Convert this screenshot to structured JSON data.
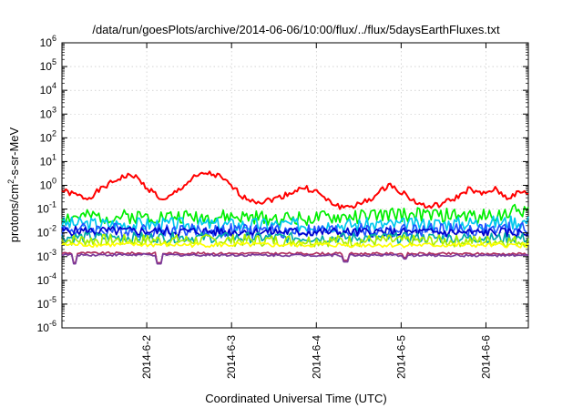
{
  "chart_data": {
    "type": "line",
    "title": "/data/run/goesPlots/archive/2014-06-06/10:00/flux/../flux/5daysEarthFluxes.txt",
    "xlabel": "Coordinated Universal Time (UTC)",
    "ylabel": {
      "prefix": "protons/cm",
      "sup": "2",
      "suffix": "-s-sr-MeV"
    },
    "yscale": "log",
    "ylim_exp": [
      -6,
      6
    ],
    "ytick_base": "10",
    "ytick_exps": [
      "-6",
      "-5",
      "-4",
      "-3",
      "-2",
      "-1",
      "0",
      "1",
      "2",
      "3",
      "4",
      "5",
      "6"
    ],
    "xlim": [
      0,
      5.5
    ],
    "xtick_values": [
      1,
      2,
      3,
      4,
      5
    ],
    "xtick_labels": [
      "2014-6-2",
      "2014-6-3",
      "2014-6-4",
      "2014-6-5",
      "2014-6-6"
    ],
    "grid": true,
    "legend": "none",
    "series": [
      {
        "color": "#ff0000",
        "profile": [
          [
            0,
            0.6
          ],
          [
            0.3,
            0.28
          ],
          [
            0.5,
            0.85
          ],
          [
            0.7,
            2.2
          ],
          [
            0.85,
            2.6
          ],
          [
            1.0,
            0.8
          ],
          [
            1.1,
            0.45
          ],
          [
            1.2,
            0.2
          ],
          [
            1.35,
            0.55
          ],
          [
            1.55,
            2.0
          ],
          [
            1.7,
            3.3
          ],
          [
            1.85,
            2.4
          ],
          [
            2.0,
            0.9
          ],
          [
            2.15,
            0.3
          ],
          [
            2.35,
            0.2
          ],
          [
            2.55,
            0.3
          ],
          [
            2.7,
            0.5
          ],
          [
            2.85,
            0.8
          ],
          [
            3.0,
            0.55
          ],
          [
            3.15,
            0.2
          ],
          [
            3.3,
            0.12
          ],
          [
            3.5,
            0.15
          ],
          [
            3.7,
            0.35
          ],
          [
            3.85,
            1.1
          ],
          [
            4.0,
            0.55
          ],
          [
            4.15,
            0.22
          ],
          [
            4.3,
            0.12
          ],
          [
            4.45,
            0.15
          ],
          [
            4.65,
            0.3
          ],
          [
            4.8,
            0.7
          ],
          [
            4.95,
            0.4
          ],
          [
            5.1,
            0.7
          ],
          [
            5.25,
            0.3
          ],
          [
            5.4,
            0.5
          ],
          [
            5.5,
            0.45
          ]
        ],
        "noise": 0.12,
        "noise_seed": 1,
        "dips": []
      },
      {
        "color": "#00ee00",
        "profile": [
          [
            0,
            0.045
          ],
          [
            1.0,
            0.05
          ],
          [
            2.0,
            0.045
          ],
          [
            3.0,
            0.04
          ],
          [
            4.0,
            0.06
          ],
          [
            5.0,
            0.05
          ],
          [
            5.5,
            0.1
          ]
        ],
        "noise": 0.3,
        "noise_seed": 2,
        "dips": []
      },
      {
        "color": "#00c8ee",
        "profile": [
          [
            0,
            0.024
          ],
          [
            2.0,
            0.022
          ],
          [
            4.0,
            0.022
          ],
          [
            5.5,
            0.03
          ]
        ],
        "noise": 0.3,
        "noise_seed": 3,
        "dips": []
      },
      {
        "color": "#2255ff",
        "profile": [
          [
            0,
            0.014
          ],
          [
            2.0,
            0.012
          ],
          [
            4.0,
            0.012
          ],
          [
            5.5,
            0.014
          ]
        ],
        "noise": 0.3,
        "noise_seed": 4,
        "dips": []
      },
      {
        "color": "#0000cc",
        "profile": [
          [
            0,
            0.012
          ],
          [
            5.5,
            0.01
          ]
        ],
        "noise": 0.2,
        "noise_seed": 5,
        "dips": []
      },
      {
        "color": "#00aaaa",
        "profile": [
          [
            0,
            0.0065
          ],
          [
            5.5,
            0.006
          ]
        ],
        "noise": 0.22,
        "noise_seed": 6,
        "dips": []
      },
      {
        "color": "#aaee00",
        "profile": [
          [
            0,
            0.005
          ],
          [
            5.5,
            0.0045
          ]
        ],
        "noise": 0.25,
        "noise_seed": 7,
        "dips": []
      },
      {
        "color": "#ffff00",
        "profile": [
          [
            0,
            0.0032
          ],
          [
            5.5,
            0.003
          ]
        ],
        "noise": 0.1,
        "noise_seed": 8,
        "dips": []
      },
      {
        "color": "#b03060",
        "profile": [
          [
            0,
            0.0014
          ],
          [
            5.5,
            0.0013
          ]
        ],
        "noise": 0.05,
        "noise_seed": 9,
        "dips": [
          [
            0.15,
            0.00055
          ],
          [
            1.15,
            0.00055
          ],
          [
            3.35,
            0.0007
          ],
          [
            4.05,
            0.0009
          ]
        ]
      },
      {
        "color": "#7a3a9a",
        "profile": [
          [
            0,
            0.0012
          ],
          [
            5.5,
            0.0011
          ]
        ],
        "noise": 0.05,
        "noise_seed": 10,
        "dips": [
          [
            0.15,
            0.0005
          ],
          [
            1.15,
            0.0005
          ],
          [
            3.35,
            0.0006
          ],
          [
            4.05,
            0.0008
          ]
        ]
      }
    ]
  }
}
